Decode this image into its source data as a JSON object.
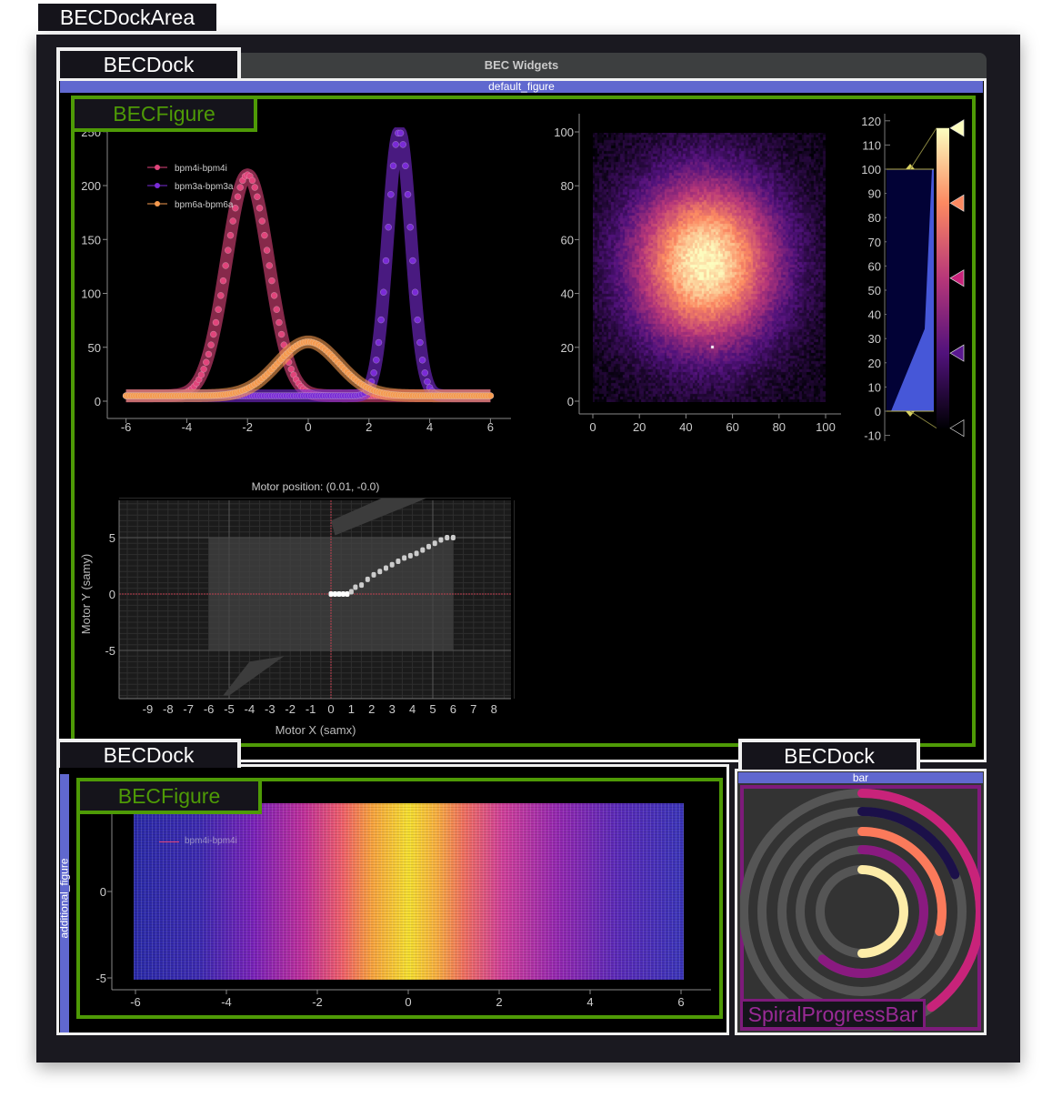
{
  "dock_area": {
    "label": "BECDockArea"
  },
  "window": {
    "title": "BEC Widgets"
  },
  "dock_main": {
    "label": "BECDock",
    "figure_name": "default_figure",
    "figure_label": "BECFigure"
  },
  "dock_bottom_left": {
    "label": "BECDock",
    "figure_name": "additional_figure",
    "figure_label": "BECFigure"
  },
  "dock_bottom_right": {
    "label": "BECDock",
    "widget_name": "bar",
    "widget_label": "SpiralProgressBar"
  },
  "colors": {
    "accent_green": "#4e9a06",
    "dock_blue": "#6068cf",
    "spiral_purple": "#7e1b7b"
  },
  "chart_data": [
    {
      "type": "line",
      "legend": [
        "bpm4i-bpm4i",
        "bpm3a-bpm3a",
        "bpm6a-bpm6a"
      ],
      "legend_placement": "top-left",
      "xlim": [
        -6.5,
        6.5
      ],
      "ylim": [
        -10,
        250
      ],
      "xticks": [
        "-6",
        "-4",
        "-2",
        "0",
        "2",
        "4",
        "6"
      ],
      "yticks": [
        "0",
        "50",
        "100",
        "150",
        "200",
        "250"
      ],
      "series": [
        {
          "name": "bpm4i-bpm4i",
          "color": "#e0457b",
          "peak_x": -2,
          "amplitude": 205,
          "sigma": 0.7,
          "baseline": 5
        },
        {
          "name": "bpm3a-bpm3a",
          "color": "#7a2bd6",
          "peak_x": 3,
          "amplitude": 245,
          "sigma": 0.38,
          "baseline": 5
        },
        {
          "name": "bpm6a-bpm6a",
          "color": "#f59a4f",
          "peak_x": 0,
          "amplitude": 50,
          "sigma": 1.0,
          "baseline": 5
        }
      ]
    },
    {
      "type": "heatmap",
      "colormap": "magma",
      "xlim": [
        0,
        100
      ],
      "ylim": [
        0,
        100
      ],
      "xticks": [
        "0",
        "20",
        "40",
        "60",
        "80",
        "100"
      ],
      "yticks": [
        "0",
        "20",
        "40",
        "60",
        "80",
        "100"
      ],
      "colorbar": {
        "range": [
          -10,
          120
        ],
        "ticks": [
          "120",
          "110",
          "100",
          "90",
          "80",
          "70",
          "60",
          "50",
          "40",
          "30",
          "20",
          "10",
          "0",
          "-10"
        ],
        "levels": [
          0,
          100
        ]
      }
    },
    {
      "type": "scatter",
      "title": "Motor position: (0.01, -0.0)",
      "xlabel": "Motor X (samx)",
      "ylabel": "Motor Y (samy)",
      "xlim": [
        -10,
        9
      ],
      "ylim": [
        -9,
        8.5
      ],
      "xticks": [
        "-9",
        "-8",
        "-7",
        "-6",
        "-5",
        "-4",
        "-3",
        "-2",
        "-1",
        "0",
        "1",
        "2",
        "3",
        "4",
        "5",
        "6",
        "7",
        "8"
      ],
      "yticks": [
        "5",
        "0",
        "-5"
      ],
      "limits_box": {
        "x": [
          -6,
          6
        ],
        "y": [
          -5,
          5
        ]
      },
      "points": [
        [
          0,
          0
        ],
        [
          0.2,
          0
        ],
        [
          0.4,
          0
        ],
        [
          0.6,
          0
        ],
        [
          0.8,
          0
        ],
        [
          1,
          0.2
        ],
        [
          1.2,
          0.6
        ],
        [
          1.5,
          0.8
        ],
        [
          1.8,
          1.3
        ],
        [
          2.1,
          1.7
        ],
        [
          2.4,
          2
        ],
        [
          2.7,
          2.3
        ],
        [
          3,
          2.6
        ],
        [
          3.3,
          2.9
        ],
        [
          3.6,
          3.2
        ],
        [
          3.9,
          3.4
        ],
        [
          4.2,
          3.6
        ],
        [
          4.5,
          3.9
        ],
        [
          4.8,
          4.2
        ],
        [
          5.1,
          4.5
        ],
        [
          5.4,
          4.8
        ],
        [
          5.7,
          5
        ],
        [
          6,
          5
        ]
      ]
    },
    {
      "type": "scatter",
      "legend": [
        "bpm4i-bpm4i"
      ],
      "colormap": "plasma",
      "xlim": [
        -6.3,
        6.3
      ],
      "ylim": [
        -5.5,
        4.6
      ],
      "xticks": [
        "-6",
        "-4",
        "-2",
        "0",
        "2",
        "4",
        "6"
      ],
      "yticks": [
        "0",
        "-5"
      ]
    },
    {
      "type": "spiral_progress",
      "rings": [
        {
          "color": "#c8237a",
          "value": 0.4
        },
        {
          "color": "#1b1049",
          "value": 0.19
        },
        {
          "color": "#fb7a5b",
          "value": 0.29
        },
        {
          "color": "#8a1a80",
          "value": 0.61
        },
        {
          "color": "#fdeca8",
          "value": 0.5
        }
      ]
    }
  ]
}
